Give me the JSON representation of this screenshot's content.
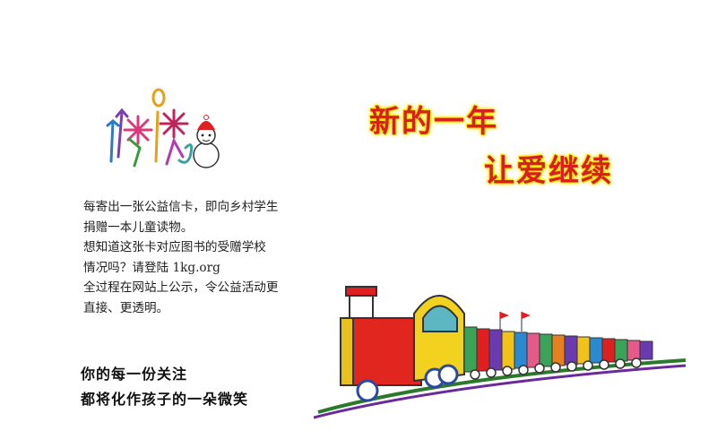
{
  "headline": {
    "line1": "新的一年",
    "line2": "让爱继续"
  },
  "body": {
    "lines": [
      "每寄出一张公益信卡，即向乡村学生",
      "捐赠一本儿童读物。",
      "想知道这张卡对应图书的受赠学校",
      "情况吗？请登陆 1kg.org",
      "全过程在网站上公示，令公益活动更",
      "直接、更透明。"
    ]
  },
  "slogan": {
    "line1": "你的每一份关注",
    "line2": "都将化作孩子的一朵微笑"
  },
  "colors": {
    "headline": "#d61f1f",
    "headline_glow": "#ffe600"
  }
}
